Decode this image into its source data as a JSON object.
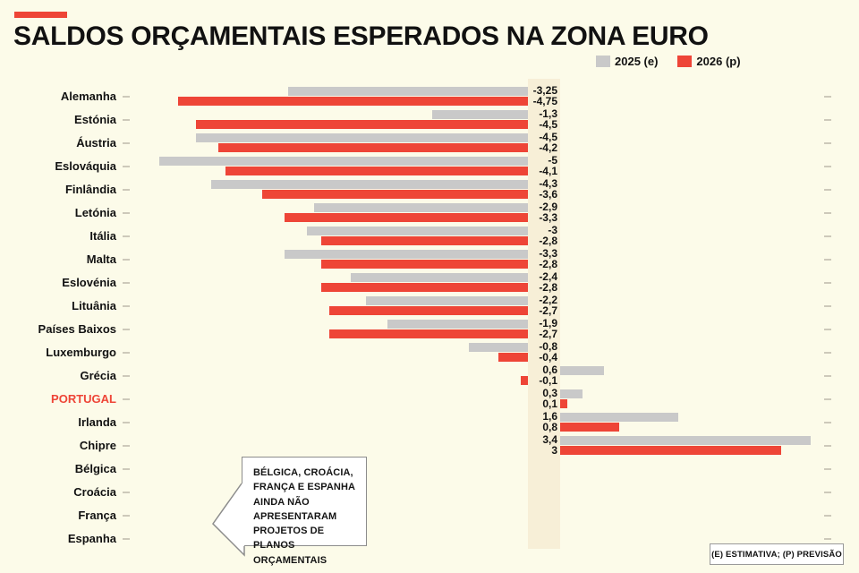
{
  "header": {
    "title": "SALDOS ORÇAMENTAIS ESPERADOS NA ZONA EURO",
    "accent_color": "#EE4537"
  },
  "legend": {
    "items": [
      {
        "label": "2025 (e)",
        "color": "#C9C9C9"
      },
      {
        "label": "2026 (p)",
        "color": "#EE4537"
      }
    ]
  },
  "chart_data": {
    "type": "bar",
    "orientation": "horizontal",
    "title": "SALDOS ORÇAMENTAIS ESPERADOS NA ZONA EURO",
    "legend_position": "top-right",
    "xlim": [
      -5.5,
      3.7
    ],
    "grid": false,
    "highlight_category": "PORTUGAL",
    "categories": [
      "Alemanha",
      "Estónia",
      "Áustria",
      "Eslováquia",
      "Finlândia",
      "Letónia",
      "Itália",
      "Malta",
      "Eslovénia",
      "Lituânia",
      "Países Baixos",
      "Luxemburgo",
      "Grécia",
      "PORTUGAL",
      "Irlanda",
      "Chipre",
      "Bélgica",
      "Croácia",
      "França",
      "Espanha"
    ],
    "series": [
      {
        "name": "2025 (e)",
        "color": "#C9C9C9",
        "values": [
          -3.25,
          -1.3,
          -4.5,
          -5,
          -4.3,
          -2.9,
          -3,
          -3.3,
          -2.4,
          -2.2,
          -1.9,
          -0.8,
          0.6,
          0.3,
          1.6,
          3.4,
          null,
          null,
          null,
          null
        ]
      },
      {
        "name": "2026 (p)",
        "color": "#EE4537",
        "values": [
          -4.75,
          -4.5,
          -4.2,
          -4.1,
          -3.6,
          -3.3,
          -2.8,
          -2.8,
          -2.8,
          -2.7,
          -2.7,
          -0.4,
          -0.1,
          0.1,
          0.8,
          3,
          null,
          null,
          null,
          null
        ]
      }
    ],
    "value_labels": [
      [
        "-3,25",
        "-4,75"
      ],
      [
        "-1,3",
        "-4,5"
      ],
      [
        "-4,5",
        "-4,2"
      ],
      [
        "-5",
        "-4,1"
      ],
      [
        "-4,3",
        "-3,6"
      ],
      [
        "-2,9",
        "-3,3"
      ],
      [
        "-3",
        "-2,8"
      ],
      [
        "-3,3",
        "-2,8"
      ],
      [
        "-2,4",
        "-2,8"
      ],
      [
        "-2,2",
        "-2,7"
      ],
      [
        "-1,9",
        "-2,7"
      ],
      [
        "-0,8",
        "-0,4"
      ],
      [
        "0,6",
        "-0,1"
      ],
      [
        "0,3",
        "0,1"
      ],
      [
        "1,6",
        "0,8"
      ],
      [
        "3,4",
        "3"
      ],
      null,
      null,
      null,
      null
    ]
  },
  "annotation": {
    "text": "BÉLGICA, CROÁCIA, FRANÇA E ESPANHA AINDA NÃO APRESENTARAM PROJETOS DE PLANOS ORÇAMENTAIS"
  },
  "footnote": {
    "text": "(E) ESTIMATIVA; (P) PREVISÃO"
  },
  "colors": {
    "background": "#FCFBE9",
    "band": "#F7EFD7",
    "bar_2025": "#C9C9C9",
    "bar_2026": "#EE4537",
    "highlight_text": "#EE4537",
    "text": "#121212",
    "tick": "#CDC9BA",
    "box_border": "#8C8C8C"
  }
}
